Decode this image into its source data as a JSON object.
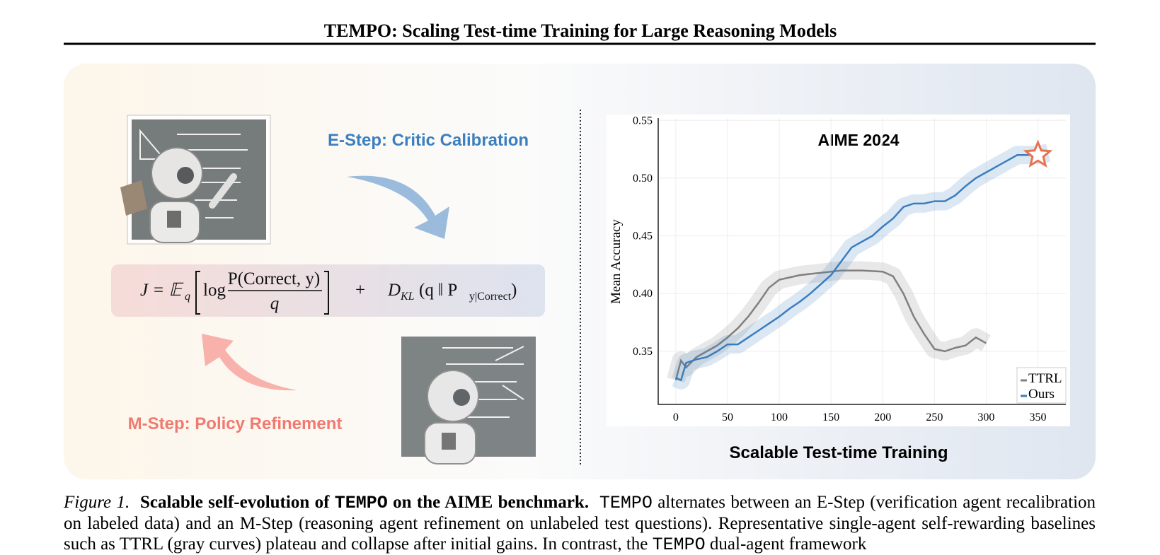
{
  "header": {
    "title": "TEMPO: Scaling Test-time Training for Large Reasoning Models"
  },
  "figure": {
    "e_step": "E-Step: Critic Calibration",
    "m_step": "M-Step: Policy Refinement",
    "subtitle": "Scalable Test-time Training",
    "formula": {
      "lhs": "J = 𝔼",
      "lhs_sub": "q",
      "log": "log",
      "numerator": "P(Correct, y)",
      "denominator": "q",
      "plus": "+",
      "kl": "D",
      "kl_sub": "KL",
      "kl_args": "(q ‖ P",
      "kl_args_sub": "y|Correct",
      "kl_close": ")"
    }
  },
  "chart_data": {
    "type": "line",
    "title": "AIME 2024",
    "y_label": "Mean Accuracy",
    "xlim": [
      -17,
      377
    ],
    "ylim": [
      0.304,
      0.552
    ],
    "xticks": [
      0,
      50,
      100,
      150,
      200,
      250,
      300,
      350
    ],
    "yticks": [
      0.35,
      {
        "value": 0.4,
        "label": "0.40"
      },
      0.45,
      {
        "value": 0.5,
        "label": "0.50"
      },
      0.55
    ],
    "grid": true,
    "legend": "lower right",
    "series": [
      {
        "name": "TTRL",
        "color": "#808080",
        "x": [
          0,
          5,
          10,
          20,
          30,
          40,
          50,
          60,
          70,
          80,
          90,
          100,
          120,
          140,
          160,
          180,
          200,
          210,
          220,
          230,
          240,
          250,
          260,
          270,
          280,
          290,
          300
        ],
        "values": [
          0.325,
          0.342,
          0.336,
          0.345,
          0.35,
          0.355,
          0.362,
          0.37,
          0.38,
          0.392,
          0.405,
          0.412,
          0.416,
          0.418,
          0.42,
          0.42,
          0.419,
          0.415,
          0.4,
          0.38,
          0.365,
          0.352,
          0.35,
          0.353,
          0.355,
          0.362,
          0.357
        ]
      },
      {
        "name": "Ours",
        "color": "#3a7dbf",
        "x": [
          0,
          5,
          10,
          20,
          30,
          40,
          50,
          60,
          70,
          80,
          90,
          100,
          110,
          120,
          130,
          140,
          150,
          160,
          170,
          180,
          190,
          200,
          210,
          220,
          230,
          240,
          250,
          260,
          270,
          280,
          290,
          300,
          310,
          320,
          330,
          340,
          350,
          360
        ],
        "values": [
          0.327,
          0.325,
          0.34,
          0.343,
          0.345,
          0.35,
          0.356,
          0.356,
          0.362,
          0.368,
          0.374,
          0.38,
          0.387,
          0.393,
          0.4,
          0.408,
          0.416,
          0.428,
          0.44,
          0.445,
          0.45,
          0.458,
          0.465,
          0.475,
          0.478,
          0.478,
          0.48,
          0.48,
          0.485,
          0.493,
          0.5,
          0.505,
          0.51,
          0.515,
          0.52,
          0.52,
          0.52,
          0.522
        ]
      }
    ]
  },
  "caption": {
    "parts": [
      "Figure 1.",
      "Scalable self-evolution of",
      "TEMPO",
      "on the AIME benchmark.",
      "TEMPO",
      "alternates between an E-Step (verification agent recalibration on labeled data) and an M-Step (reasoning agent refinement on unlabeled test questions). Representative single-agent self-rewarding baselines such as TTRL (gray curves) plateau and collapse after initial gains. In contrast, the",
      "TEMPO",
      "dual-agent framework"
    ]
  }
}
